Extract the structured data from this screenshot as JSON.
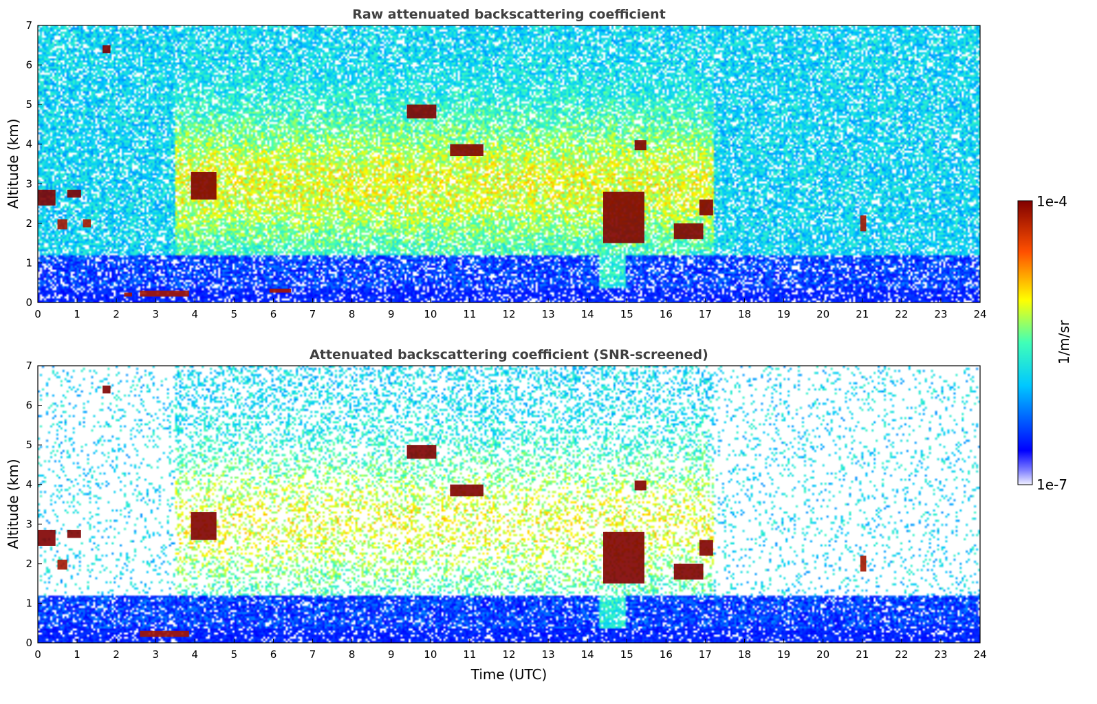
{
  "chart_data": [
    {
      "type": "heatmap",
      "title": "Raw attenuated backscattering coefficient",
      "xlabel": "",
      "ylabel": "Altitude (km)",
      "xlim": [
        0,
        24
      ],
      "ylim": [
        0,
        7
      ],
      "x_ticks": [
        "0",
        "1",
        "2",
        "3",
        "4",
        "5",
        "6",
        "7",
        "8",
        "9",
        "10",
        "11",
        "12",
        "13",
        "14",
        "15",
        "16",
        "17",
        "18",
        "19",
        "20",
        "21",
        "22",
        "23",
        "24"
      ],
      "y_ticks": [
        "0",
        "1",
        "2",
        "3",
        "4",
        "5",
        "6",
        "7"
      ],
      "screened": false,
      "features": [
        {
          "t0": 0.0,
          "t1": 0.45,
          "z0": 2.45,
          "z1": 2.85,
          "level": 1.0
        },
        {
          "t0": 0.75,
          "t1": 1.1,
          "z0": 2.65,
          "z1": 2.85,
          "level": 1.0
        },
        {
          "t0": 0.5,
          "t1": 0.75,
          "z0": 1.85,
          "z1": 2.1,
          "level": 0.95
        },
        {
          "t0": 1.15,
          "t1": 1.35,
          "z0": 1.9,
          "z1": 2.1,
          "level": 0.95
        },
        {
          "t0": 1.65,
          "t1": 1.85,
          "z0": 6.3,
          "z1": 6.5,
          "level": 1.0
        },
        {
          "t0": 2.2,
          "t1": 2.4,
          "z0": 0.15,
          "z1": 0.25,
          "level": 0.95
        },
        {
          "t0": 2.6,
          "t1": 3.85,
          "z0": 0.15,
          "z1": 0.3,
          "level": 0.95
        },
        {
          "t0": 3.9,
          "t1": 4.55,
          "z0": 2.6,
          "z1": 3.3,
          "level": 1.0
        },
        {
          "t0": 5.9,
          "t1": 6.45,
          "z0": 0.25,
          "z1": 0.35,
          "level": 0.95
        },
        {
          "t0": 9.4,
          "t1": 10.15,
          "z0": 4.65,
          "z1": 5.0,
          "level": 1.0
        },
        {
          "t0": 10.5,
          "t1": 11.35,
          "z0": 3.7,
          "z1": 4.0,
          "level": 1.0
        },
        {
          "t0": 14.4,
          "t1": 15.45,
          "z0": 1.5,
          "z1": 2.8,
          "level": 1.0
        },
        {
          "t0": 15.2,
          "t1": 15.5,
          "z0": 3.85,
          "z1": 4.1,
          "level": 1.0
        },
        {
          "t0": 16.2,
          "t1": 16.95,
          "z0": 1.6,
          "z1": 2.0,
          "level": 1.0
        },
        {
          "t0": 16.85,
          "t1": 17.2,
          "z0": 2.2,
          "z1": 2.6,
          "level": 1.0
        },
        {
          "t0": 20.95,
          "t1": 21.1,
          "z0": 1.8,
          "z1": 2.2,
          "level": 0.95
        }
      ]
    },
    {
      "type": "heatmap",
      "title": "Attenuated backscattering coefficient (SNR-screened)",
      "xlabel": "Time (UTC)",
      "ylabel": "Altitude (km)",
      "xlim": [
        0,
        24
      ],
      "ylim": [
        0,
        7
      ],
      "x_ticks": [
        "0",
        "1",
        "2",
        "3",
        "4",
        "5",
        "6",
        "7",
        "8",
        "9",
        "10",
        "11",
        "12",
        "13",
        "14",
        "15",
        "16",
        "17",
        "18",
        "19",
        "20",
        "21",
        "22",
        "23",
        "24"
      ],
      "y_ticks": [
        "0",
        "1",
        "2",
        "3",
        "4",
        "5",
        "6",
        "7"
      ],
      "screened": true,
      "features": [
        {
          "t0": 0.0,
          "t1": 0.45,
          "z0": 2.45,
          "z1": 2.85,
          "level": 1.0
        },
        {
          "t0": 0.75,
          "t1": 1.1,
          "z0": 2.65,
          "z1": 2.85,
          "level": 1.0
        },
        {
          "t0": 0.5,
          "t1": 0.75,
          "z0": 1.85,
          "z1": 2.1,
          "level": 0.95
        },
        {
          "t0": 1.65,
          "t1": 1.85,
          "z0": 6.3,
          "z1": 6.5,
          "level": 1.0
        },
        {
          "t0": 2.6,
          "t1": 3.85,
          "z0": 0.15,
          "z1": 0.3,
          "level": 0.95
        },
        {
          "t0": 3.9,
          "t1": 4.55,
          "z0": 2.6,
          "z1": 3.3,
          "level": 1.0
        },
        {
          "t0": 9.4,
          "t1": 10.15,
          "z0": 4.65,
          "z1": 5.0,
          "level": 1.0
        },
        {
          "t0": 10.5,
          "t1": 11.35,
          "z0": 3.7,
          "z1": 4.0,
          "level": 1.0
        },
        {
          "t0": 14.4,
          "t1": 15.45,
          "z0": 1.5,
          "z1": 2.8,
          "level": 1.0
        },
        {
          "t0": 15.2,
          "t1": 15.5,
          "z0": 3.85,
          "z1": 4.1,
          "level": 1.0
        },
        {
          "t0": 16.2,
          "t1": 16.95,
          "z0": 1.6,
          "z1": 2.0,
          "level": 1.0
        },
        {
          "t0": 16.85,
          "t1": 17.2,
          "z0": 2.2,
          "z1": 2.6,
          "level": 1.0
        },
        {
          "t0": 20.95,
          "t1": 21.1,
          "z0": 1.8,
          "z1": 2.2,
          "level": 0.95
        }
      ]
    }
  ],
  "colorbar": {
    "label": "1/m/sr",
    "max_label": "1e-4",
    "min_label": "1e-7",
    "colormap": "jet"
  }
}
